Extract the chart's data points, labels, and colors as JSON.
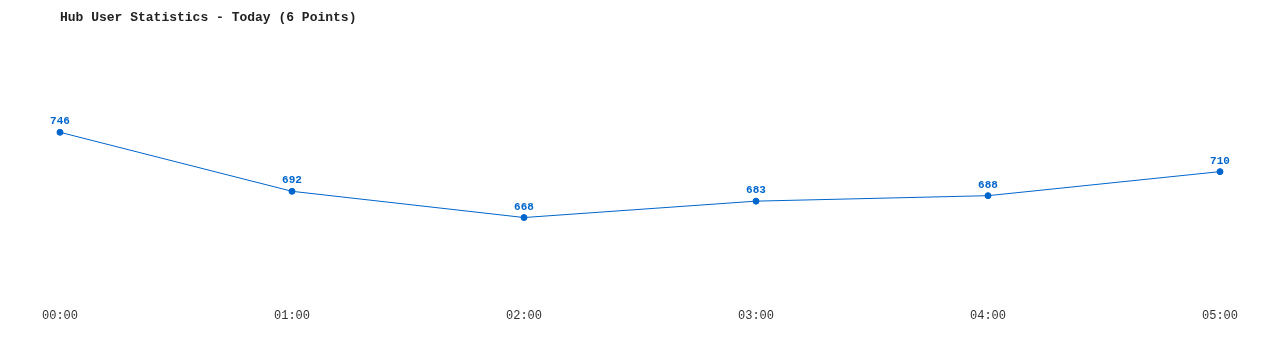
{
  "chart_data": {
    "type": "line",
    "title": "Hub User Statistics - Today (6 Points)",
    "categories": [
      "00:00",
      "01:00",
      "02:00",
      "03:00",
      "04:00",
      "05:00"
    ],
    "series": [
      {
        "color": "#0066cc",
        "values": [
          746,
          692,
          668,
          683,
          688,
          710
        ]
      }
    ],
    "tick_labels": "x",
    "data_labels": true,
    "marker": "circle",
    "line_style": "solid"
  }
}
